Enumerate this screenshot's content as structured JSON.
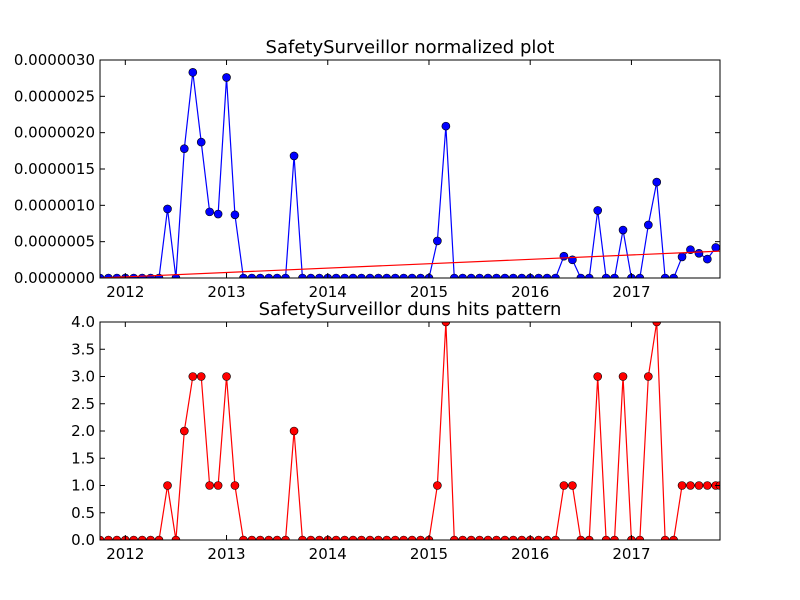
{
  "chart_data": [
    {
      "type": "line",
      "title": "SafetySurveillor normalized plot",
      "xlabel": "",
      "ylabel": "",
      "xlim": [
        2011.75,
        2017.875
      ],
      "ylim": [
        0,
        3e-06
      ],
      "x_ticks": [
        2012,
        2013,
        2014,
        2015,
        2016,
        2017
      ],
      "x_tick_labels": [
        "2012",
        "2013",
        "2014",
        "2015",
        "2016",
        "2017"
      ],
      "y_ticks": [
        0,
        5e-07,
        1e-06,
        1.5e-06,
        2e-06,
        2.5e-06,
        3e-06
      ],
      "y_tick_labels": [
        "0.0000000",
        "0.0000005",
        "0.0000010",
        "0.0000015",
        "0.0000020",
        "0.0000025",
        "0.0000030"
      ],
      "grid": false,
      "legend": "none",
      "series": [
        {
          "color": "#0000ff",
          "marker": "circle",
          "x": [
            2011.75,
            2011.833,
            2011.917,
            2012.0,
            2012.083,
            2012.167,
            2012.25,
            2012.333,
            2012.417,
            2012.5,
            2012.583,
            2012.667,
            2012.75,
            2012.833,
            2012.917,
            2013.0,
            2013.083,
            2013.167,
            2013.25,
            2013.333,
            2013.417,
            2013.5,
            2013.583,
            2013.667,
            2013.75,
            2013.833,
            2013.917,
            2014.0,
            2014.083,
            2014.167,
            2014.25,
            2014.333,
            2014.417,
            2014.5,
            2014.583,
            2014.667,
            2014.75,
            2014.833,
            2014.917,
            2015.0,
            2015.083,
            2015.167,
            2015.25,
            2015.333,
            2015.417,
            2015.5,
            2015.583,
            2015.667,
            2015.75,
            2015.833,
            2015.917,
            2016.0,
            2016.083,
            2016.167,
            2016.25,
            2016.333,
            2016.417,
            2016.5,
            2016.583,
            2016.667,
            2016.75,
            2016.833,
            2016.917,
            2017.0,
            2017.083,
            2017.167,
            2017.25,
            2017.333,
            2017.417,
            2017.5,
            2017.583,
            2017.667,
            2017.75,
            2017.833
          ],
          "y": [
            0,
            0,
            0,
            0,
            0,
            0,
            0,
            0,
            9.5e-07,
            0,
            1.78e-06,
            2.83e-06,
            1.87e-06,
            9.1e-07,
            8.8e-07,
            2.76e-06,
            8.7e-07,
            0,
            0,
            0,
            0,
            0,
            0,
            1.68e-06,
            0,
            0,
            0,
            0,
            0,
            0,
            0,
            0,
            0,
            0,
            0,
            0,
            0,
            0,
            0,
            0,
            5.1e-07,
            2.09e-06,
            0,
            0,
            0,
            0,
            0,
            0,
            0,
            0,
            0,
            0,
            0,
            0,
            0,
            3e-07,
            2.5e-07,
            0,
            0,
            9.3e-07,
            0,
            0,
            6.6e-07,
            0,
            0,
            7.3e-07,
            1.32e-06,
            0,
            0,
            2.9e-07,
            3.9e-07,
            3.4e-07,
            2.6e-07,
            4.2e-07
          ]
        },
        {
          "color": "#ff0000",
          "marker": "none",
          "x": [
            2011.75,
            2017.875
          ],
          "y": [
            0,
            3.7e-07
          ]
        }
      ]
    },
    {
      "type": "line",
      "title": "SafetySurveillor duns hits pattern",
      "xlabel": "",
      "ylabel": "",
      "xlim": [
        2011.75,
        2017.875
      ],
      "ylim": [
        0,
        4
      ],
      "x_ticks": [
        2012,
        2013,
        2014,
        2015,
        2016,
        2017
      ],
      "x_tick_labels": [
        "2012",
        "2013",
        "2014",
        "2015",
        "2016",
        "2017"
      ],
      "y_ticks": [
        0,
        0.5,
        1,
        1.5,
        2,
        2.5,
        3,
        3.5,
        4
      ],
      "y_tick_labels": [
        "0.0",
        "0.5",
        "1.0",
        "1.5",
        "2.0",
        "2.5",
        "3.0",
        "3.5",
        "4.0"
      ],
      "grid": false,
      "legend": "none",
      "series": [
        {
          "color": "#ff0000",
          "marker": "circle",
          "x": [
            2011.75,
            2011.833,
            2011.917,
            2012.0,
            2012.083,
            2012.167,
            2012.25,
            2012.333,
            2012.417,
            2012.5,
            2012.583,
            2012.667,
            2012.75,
            2012.833,
            2012.917,
            2013.0,
            2013.083,
            2013.167,
            2013.25,
            2013.333,
            2013.417,
            2013.5,
            2013.583,
            2013.667,
            2013.75,
            2013.833,
            2013.917,
            2014.0,
            2014.083,
            2014.167,
            2014.25,
            2014.333,
            2014.417,
            2014.5,
            2014.583,
            2014.667,
            2014.75,
            2014.833,
            2014.917,
            2015.0,
            2015.083,
            2015.167,
            2015.25,
            2015.333,
            2015.417,
            2015.5,
            2015.583,
            2015.667,
            2015.75,
            2015.833,
            2015.917,
            2016.0,
            2016.083,
            2016.167,
            2016.25,
            2016.333,
            2016.417,
            2016.5,
            2016.583,
            2016.667,
            2016.75,
            2016.833,
            2016.917,
            2017.0,
            2017.083,
            2017.167,
            2017.25,
            2017.333,
            2017.417,
            2017.5,
            2017.583,
            2017.667,
            2017.75,
            2017.833,
            2017.875
          ],
          "y": [
            0,
            0,
            0,
            0,
            0,
            0,
            0,
            0,
            1,
            0,
            2,
            3,
            3,
            1,
            1,
            3,
            1,
            0,
            0,
            0,
            0,
            0,
            0,
            2,
            0,
            0,
            0,
            0,
            0,
            0,
            0,
            0,
            0,
            0,
            0,
            0,
            0,
            0,
            0,
            0,
            1,
            4,
            0,
            0,
            0,
            0,
            0,
            0,
            0,
            0,
            0,
            0,
            0,
            0,
            0,
            1,
            1,
            0,
            0,
            3,
            0,
            0,
            3,
            0,
            0,
            3,
            4,
            0,
            0,
            1,
            1,
            1,
            1,
            1,
            1
          ]
        }
      ]
    }
  ]
}
